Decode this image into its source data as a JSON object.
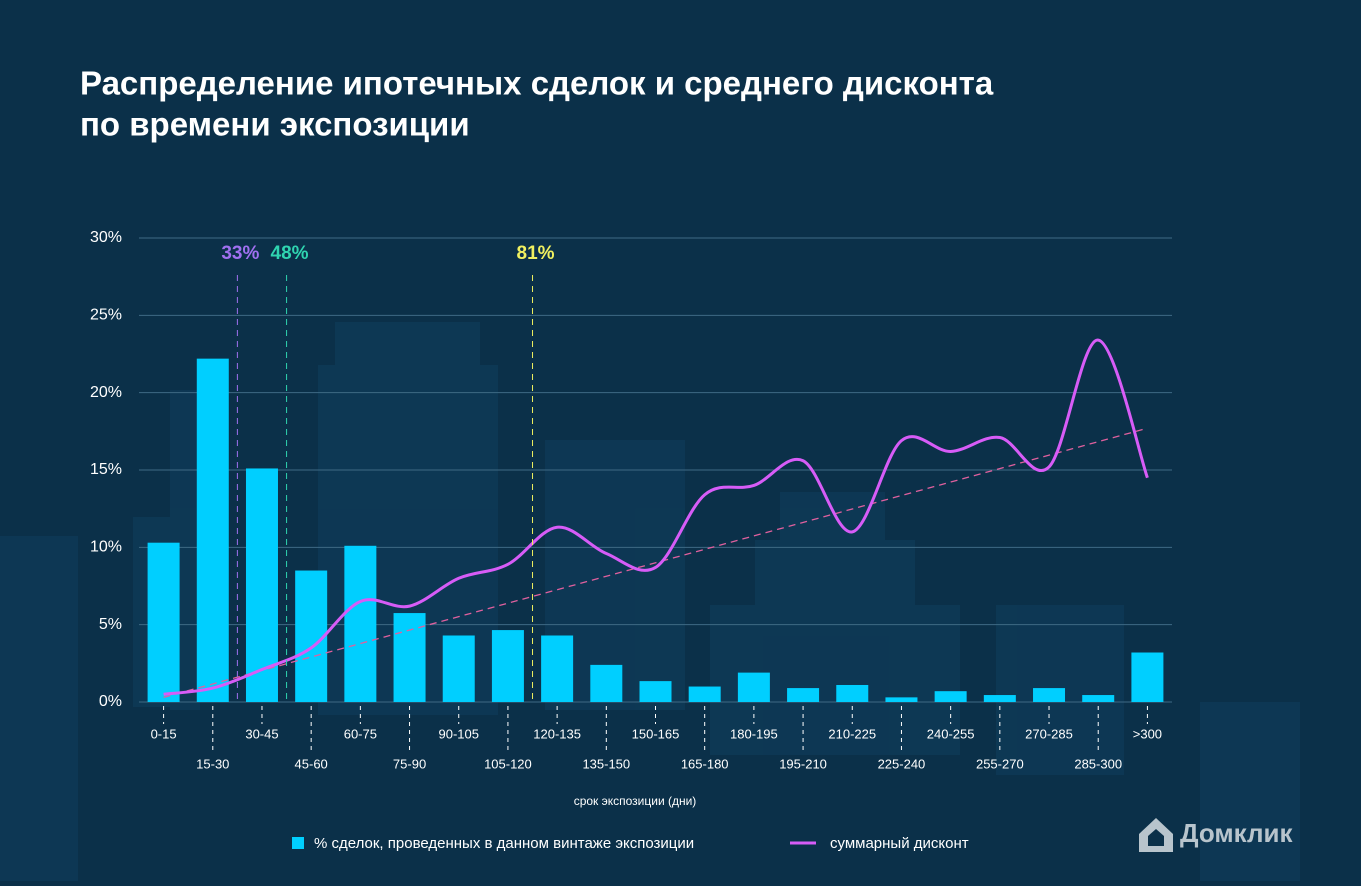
{
  "chart_data": {
    "type": "bar-line",
    "title": [
      "Распределение ипотечных сделок и среднего дисконта",
      "по времени экспозиции"
    ],
    "x_label": "срок экспозиции (дни)",
    "categories": [
      "0-15",
      "15-30",
      "30-45",
      "45-60",
      "60-75",
      "75-90",
      "90-105",
      "105-120",
      "120-135",
      "135-150",
      "150-165",
      "165-180",
      "180-195",
      "195-210",
      "210-225",
      "225-240",
      "240-255",
      "255-270",
      "270-285",
      "285-300",
      ">300"
    ],
    "series": [
      {
        "name": "% сделок, проведенных в данном винтаже экспозиции",
        "color": "#00cfff",
        "kind": "bar",
        "values": [
          10.3,
          22.2,
          15.1,
          8.5,
          10.1,
          5.75,
          4.3,
          4.65,
          4.3,
          2.4,
          1.35,
          1.0,
          1.9,
          0.9,
          1.1,
          0.3,
          0.7,
          0.45,
          0.9,
          0.45,
          3.2
        ]
      },
      {
        "name": "суммарный дисконт",
        "color": "#d75cf7",
        "kind": "line",
        "values": [
          0.5,
          0.9,
          2.1,
          3.5,
          6.5,
          6.2,
          8.0,
          8.9,
          11.3,
          9.6,
          8.7,
          13.4,
          14.0,
          15.6,
          11.0,
          16.9,
          16.2,
          17.1,
          15.2,
          23.4,
          14.5
        ]
      }
    ],
    "trend": {
      "color": "#e0609e",
      "values": [
        0.3,
        17.7
      ]
    },
    "markers": [
      {
        "days": 30,
        "label": "33%",
        "color": "#a070f0"
      },
      {
        "days": 45,
        "label": "48%",
        "color": "#2fd4b0"
      },
      {
        "days": 120,
        "label": "81%",
        "color": "#f0f060"
      }
    ],
    "ylim": [
      0,
      30
    ],
    "yticks": [
      {
        "value": 0,
        "label": "0%"
      },
      {
        "value": 5,
        "label": "5%"
      },
      {
        "value": 10,
        "label": "10%"
      },
      {
        "value": 15,
        "label": "15%"
      },
      {
        "value": 20,
        "label": "20%"
      },
      {
        "value": 25,
        "label": "25%"
      },
      {
        "value": 30,
        "label": "30%"
      }
    ],
    "grid": true,
    "brand": "Домклик"
  }
}
